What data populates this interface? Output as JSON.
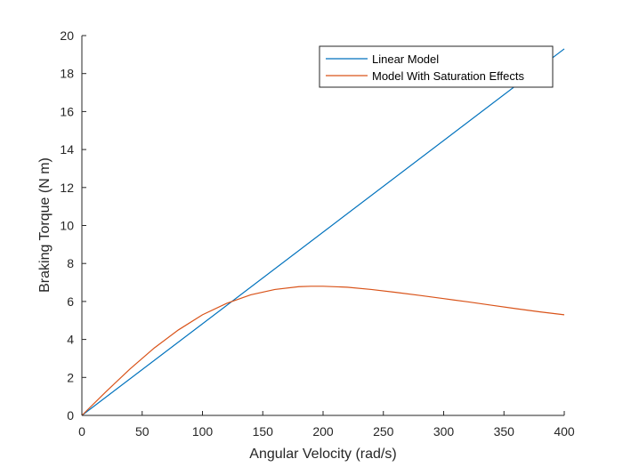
{
  "chart_data": {
    "type": "line",
    "xlabel": "Angular Velocity (rad/s)",
    "ylabel": "Braking Torque (N m)",
    "xlim": [
      0,
      400
    ],
    "ylim": [
      0,
      20
    ],
    "xticks": [
      0,
      50,
      100,
      150,
      200,
      250,
      300,
      350,
      400
    ],
    "yticks": [
      0,
      2,
      4,
      6,
      8,
      10,
      12,
      14,
      16,
      18,
      20
    ],
    "grid": false,
    "legend_position": "top-right",
    "series": [
      {
        "name": "Linear Model",
        "color": "#0072BD",
        "x": [
          0,
          400
        ],
        "y": [
          0,
          19.3
        ]
      },
      {
        "name": "Model With Saturation Effects",
        "color": "#D95319",
        "x": [
          0,
          20,
          40,
          60,
          80,
          100,
          120,
          140,
          160,
          180,
          190,
          200,
          220,
          240,
          260,
          280,
          300,
          320,
          340,
          360,
          380,
          400
        ],
        "y": [
          0,
          1.25,
          2.45,
          3.55,
          4.5,
          5.3,
          5.9,
          6.35,
          6.63,
          6.78,
          6.8,
          6.8,
          6.75,
          6.63,
          6.48,
          6.32,
          6.15,
          5.98,
          5.8,
          5.62,
          5.45,
          5.3
        ]
      }
    ]
  }
}
